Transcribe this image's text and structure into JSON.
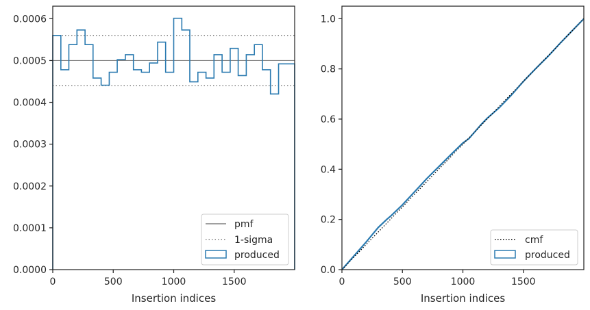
{
  "colors": {
    "produced": "#2a7ab0",
    "reference": "#808080",
    "cmf": "#000000",
    "axes": "#262626"
  },
  "chart_data": [
    {
      "type": "step",
      "xlabel": "Insertion indices",
      "ylabel": "",
      "xlim": [
        0,
        2000
      ],
      "ylim": [
        0,
        0.00063
      ],
      "xticks": [
        0,
        500,
        1000,
        1500
      ],
      "xtick_labels": [
        "0",
        "500",
        "1000",
        "1500"
      ],
      "yticks": [
        0,
        0.0001,
        0.0002,
        0.0003,
        0.0004,
        0.0005,
        0.0006
      ],
      "ytick_labels": [
        "0.0000",
        "0.0001",
        "0.0002",
        "0.0003",
        "0.0004",
        "0.0005",
        "0.0006"
      ],
      "bin_edges": [
        0,
        67,
        133,
        200,
        267,
        333,
        400,
        467,
        533,
        600,
        667,
        733,
        800,
        867,
        933,
        1000,
        1067,
        1133,
        1200,
        1267,
        1333,
        1400,
        1467,
        1533,
        1600,
        1667,
        1733,
        1800,
        1867,
        1933,
        2000
      ],
      "produced": [
        0.00056,
        0.000478,
        0.000538,
        0.000573,
        0.000538,
        0.000458,
        0.000441,
        0.000472,
        0.000502,
        0.000514,
        0.000478,
        0.000472,
        0.000494,
        0.000544,
        0.000472,
        0.000601,
        0.000573,
        0.000449,
        0.000472,
        0.000458,
        0.000514,
        0.000472,
        0.000529,
        0.000464,
        0.000514,
        0.000538,
        0.000478,
        0.00042,
        0.000492,
        0.000492
      ],
      "pmf": 0.0005,
      "sigma_band": [
        0.00044,
        0.00056
      ],
      "legend": {
        "position": "lower-right",
        "entries": [
          "pmf",
          "1-sigma",
          "produced"
        ]
      }
    },
    {
      "type": "line",
      "xlabel": "Insertion indices",
      "ylabel": "",
      "xlim": [
        0,
        2000
      ],
      "ylim": [
        0,
        1.05
      ],
      "xticks": [
        0,
        500,
        1000,
        1500
      ],
      "xtick_labels": [
        "0",
        "500",
        "1000",
        "1500"
      ],
      "yticks": [
        0,
        0.2,
        0.4,
        0.6,
        0.8,
        1.0
      ],
      "ytick_labels": [
        "0.0",
        "0.2",
        "0.4",
        "0.6",
        "0.8",
        "1.0"
      ],
      "cmf": {
        "x": [
          0,
          2000
        ],
        "y": [
          0,
          1.0
        ]
      },
      "produced": {
        "x": [
          0,
          100,
          200,
          300,
          370,
          400,
          500,
          600,
          700,
          800,
          900,
          1000,
          1050,
          1100,
          1150,
          1200,
          1300,
          1400,
          1500,
          1600,
          1700,
          1800,
          1900,
          2000
        ],
        "y": [
          0,
          0.055,
          0.11,
          0.168,
          0.2,
          0.212,
          0.258,
          0.31,
          0.362,
          0.41,
          0.458,
          0.505,
          0.522,
          0.55,
          0.578,
          0.603,
          0.645,
          0.695,
          0.75,
          0.8,
          0.848,
          0.9,
          0.95,
          1.0
        ]
      },
      "legend": {
        "position": "lower-right",
        "entries": [
          "cmf",
          "produced"
        ]
      }
    }
  ]
}
